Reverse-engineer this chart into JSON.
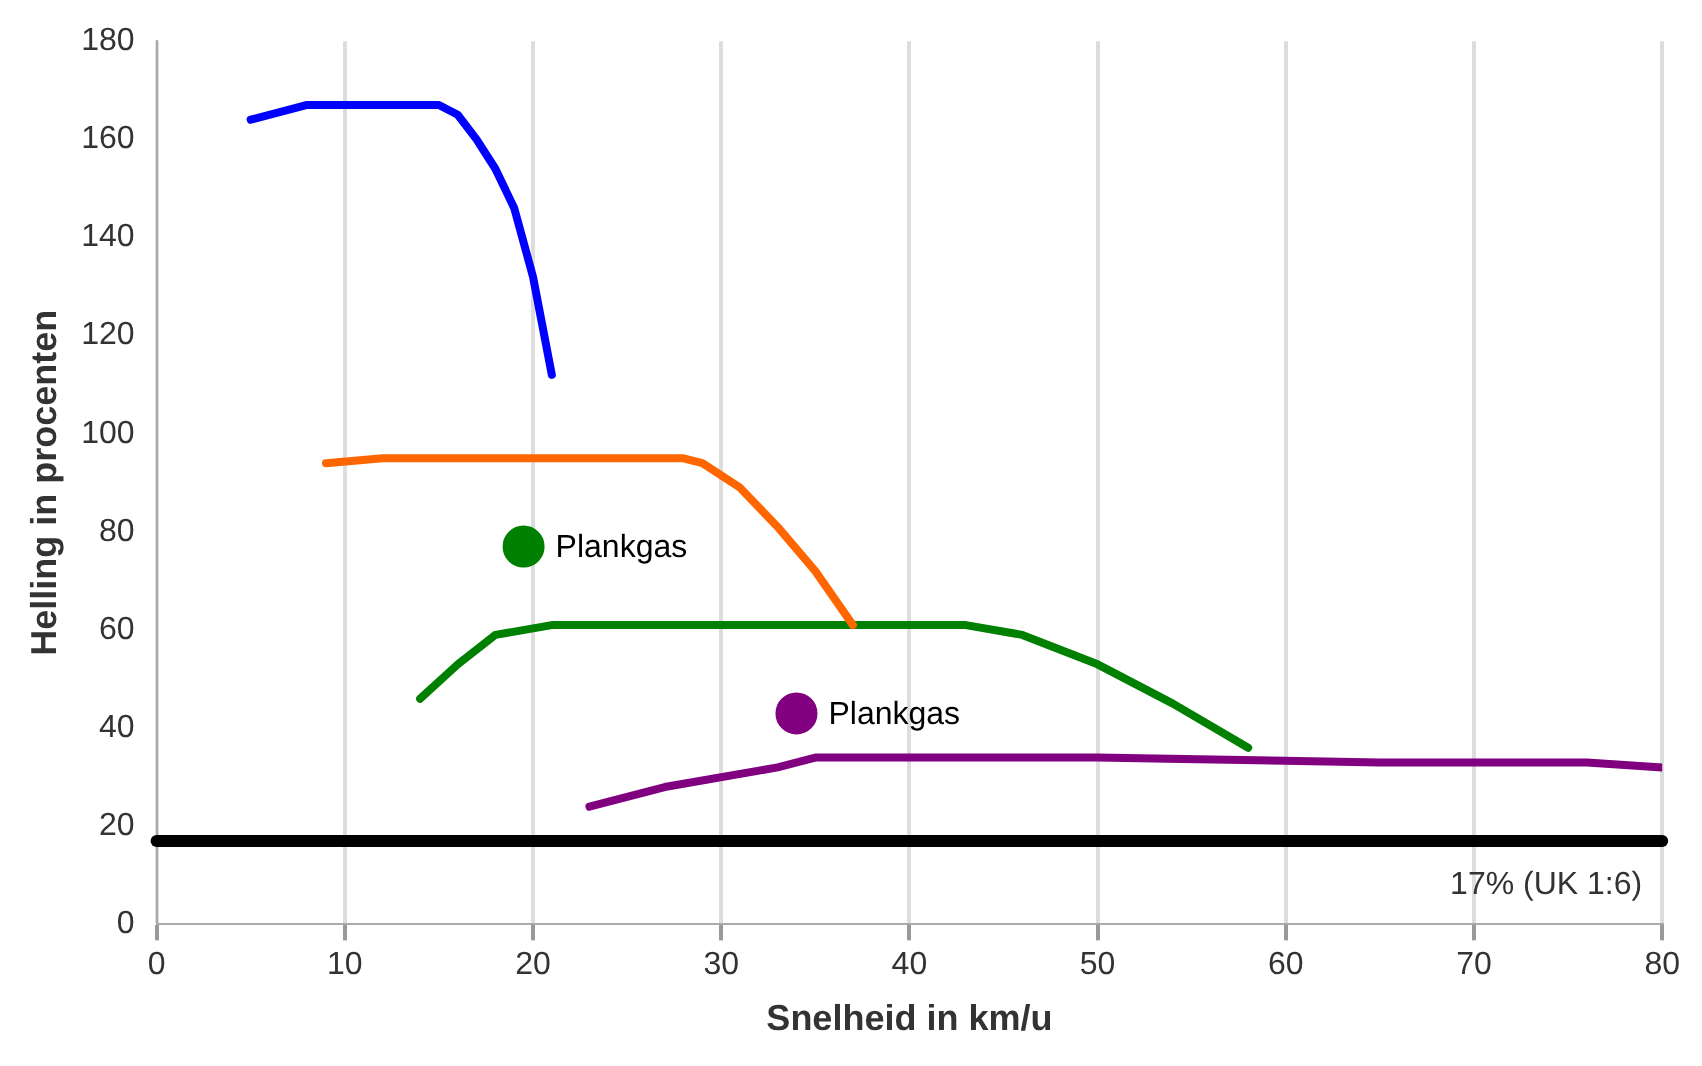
{
  "chart_data": {
    "type": "line",
    "xlabel": "Snelheid in km/u",
    "ylabel": "Helling in procenten",
    "xlim": [
      0,
      80
    ],
    "xticks": [
      0,
      10,
      20,
      30,
      40,
      50,
      60,
      70,
      80
    ],
    "ylim": [
      0,
      180
    ],
    "yticks": [
      0,
      20,
      40,
      60,
      80,
      100,
      120,
      140,
      160,
      180
    ],
    "grid": "x",
    "legend": false,
    "marker": "none",
    "line_style": "solid",
    "series": [
      {
        "color": "#0000ff",
        "x": [
          5,
          8,
          15,
          16,
          17,
          18,
          19,
          20,
          21
        ],
        "values": [
          164,
          167,
          167,
          165,
          160,
          154,
          146,
          132,
          112
        ]
      },
      {
        "color": "#ff6600",
        "x": [
          9,
          12,
          28,
          29,
          31,
          33,
          35,
          37
        ],
        "values": [
          94,
          95,
          95,
          94,
          89,
          81,
          72,
          61
        ]
      },
      {
        "color": "#008000",
        "x": [
          14,
          16,
          18,
          21,
          30,
          43,
          46,
          50,
          54,
          58
        ],
        "values": [
          46,
          53,
          59,
          61,
          61,
          61,
          59,
          53,
          45,
          36
        ]
      },
      {
        "color": "#800080",
        "x": [
          23,
          27,
          33,
          35,
          50,
          65,
          76,
          80
        ],
        "values": [
          24,
          28,
          32,
          34,
          34,
          33,
          33,
          32
        ]
      },
      {
        "type": "scatter",
        "name": "Plankgas",
        "color": "#008000",
        "x": [
          19.5
        ],
        "values": [
          77
        ],
        "marker": "circle"
      },
      {
        "type": "scatter",
        "name": "Plankgas",
        "color": "#800080",
        "x": [
          34
        ],
        "values": [
          43
        ],
        "marker": "circle"
      }
    ],
    "ref_lines": [
      {
        "axis": "y",
        "value": 17,
        "label": "17% (UK 1:6)",
        "color": "#000000"
      }
    ]
  }
}
